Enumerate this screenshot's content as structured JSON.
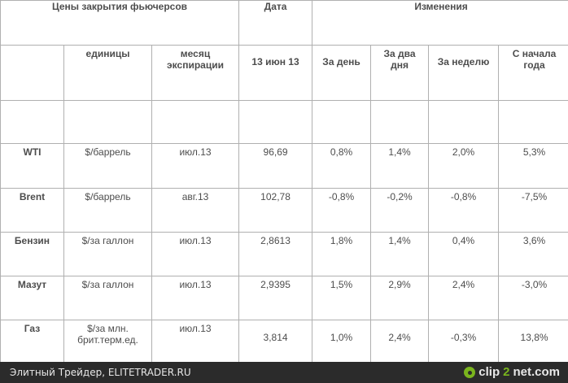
{
  "header": {
    "futures_title": "Цены закрытия фьючерсов",
    "date_title": "Дата",
    "changes_title": "Изменения"
  },
  "subheader": {
    "units": "единицы",
    "expiry_line1": "месяц",
    "expiry_line2": "экспирации",
    "date_value": "13 июн 13",
    "day": "За день",
    "two_days_line1": "За два",
    "two_days_line2": "дня",
    "week": "За неделю",
    "ytd_line1": "С начала",
    "ytd_line2": "года"
  },
  "rows": [
    {
      "name": "WTI",
      "unit": "$/баррель",
      "expiry": "июл.13",
      "price": "96,69",
      "day": "0,8%",
      "two_days": "1,4%",
      "week": "2,0%",
      "ytd": "5,3%"
    },
    {
      "name": "Brent",
      "unit": "$/баррель",
      "expiry": "авг.13",
      "price": "102,78",
      "day": "-0,8%",
      "two_days": "-0,2%",
      "week": "-0,8%",
      "ytd": "-7,5%"
    },
    {
      "name": "Бензин",
      "unit": "$/за галлон",
      "expiry": "июл.13",
      "price": "2,8613",
      "day": "1,8%",
      "two_days": "1,4%",
      "week": "0,4%",
      "ytd": "3,6%"
    },
    {
      "name": "Мазут",
      "unit": "$/за галлон",
      "expiry": "июл.13",
      "price": "2,9395",
      "day": "1,5%",
      "two_days": "2,9%",
      "week": "2,4%",
      "ytd": "-3,0%"
    },
    {
      "name": "Газ",
      "unit": "$/за млн. брит.терм.ед.",
      "expiry": "июл.13",
      "price": "3,814",
      "day": "1,0%",
      "two_days": "2,4%",
      "week": "-0,3%",
      "ytd": "13,8%"
    }
  ],
  "footer": {
    "credit": "Элитный Трейдер, ELITETRADER.RU",
    "logo_part1": "clip",
    "logo_part2": "2",
    "logo_part3": "net.com"
  }
}
